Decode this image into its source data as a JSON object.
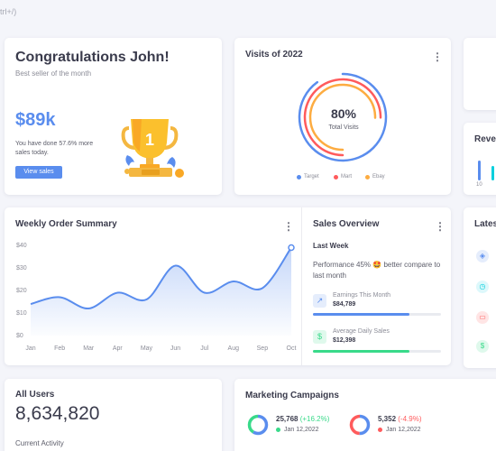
{
  "shortcut_hint": "trl+/)",
  "congrats": {
    "title": "Congratulations John!",
    "subtitle": "Best seller of the month",
    "amount": "$89k",
    "description": "You have done 57.6% more sales today.",
    "button": "View sales"
  },
  "visits": {
    "title": "Visits of 2022",
    "value": "80%",
    "label": "Total Visits",
    "legend": [
      {
        "label": "Target",
        "color": "#5a8dee"
      },
      {
        "label": "Mart",
        "color": "#ff5b5c"
      },
      {
        "label": "Ebay",
        "color": "#fdac41"
      }
    ]
  },
  "weekly": {
    "title": "Weekly Order Summary"
  },
  "chart_data": {
    "type": "area",
    "title": "Weekly Order Summary",
    "categories": [
      "Jan",
      "Feb",
      "Mar",
      "Apr",
      "May",
      "Jun",
      "Jul",
      "Aug",
      "Sep",
      "Oct"
    ],
    "y_ticks": [
      "$0",
      "$10",
      "$20",
      "$30",
      "$40"
    ],
    "ylim": [
      0,
      40
    ],
    "series": [
      {
        "values": [
          14,
          17,
          12,
          19,
          16,
          31,
          19,
          24,
          21,
          39
        ]
      }
    ],
    "color": "#5a8dee",
    "grid": false
  },
  "sales_overview": {
    "title": "Sales Overview",
    "period": "Last Week",
    "text": "Performance 45% 🤩 better compare to last month",
    "metrics": [
      {
        "label": "Earnings This Month",
        "value": "$84,789",
        "progress": 0.75,
        "color": "#5a8dee",
        "icon": "trend-up-icon"
      },
      {
        "label": "Average Daily Sales",
        "value": "$12,398",
        "progress": 0.75,
        "color": "#39da8a",
        "icon": "dollar-icon"
      }
    ]
  },
  "side": {
    "revenue_title": "Reve",
    "latest_title": "Lates",
    "revenue_tick": "10"
  },
  "all_users": {
    "title": "All Users",
    "value": "8,634,820",
    "subtitle": "Current Activity"
  },
  "marketing": {
    "title": "Marketing Campaigns",
    "items": [
      {
        "value": "25,768",
        "change": "(+16.2%)",
        "change_color": "#39da8a",
        "date": "Jan 12,2022",
        "dot_color": "#39da8a"
      },
      {
        "value": "5,352",
        "change": "(-4.9%)",
        "change_color": "#ff5b5c",
        "date": "Jan 12,2022",
        "dot_color": "#ff5b5c"
      }
    ]
  }
}
